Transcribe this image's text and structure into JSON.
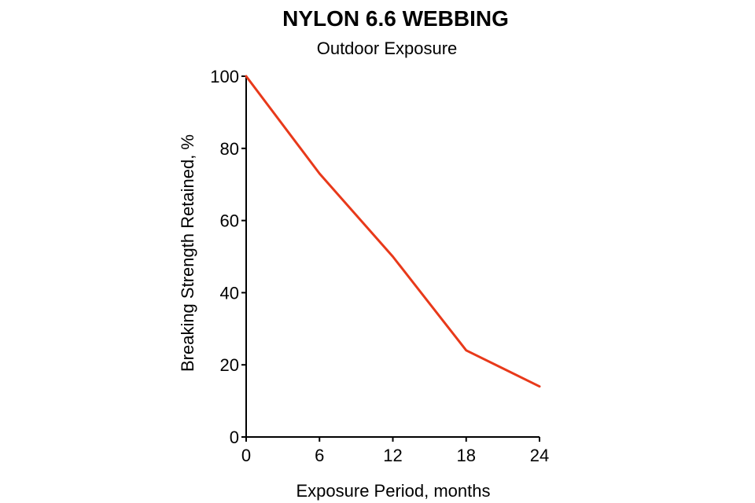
{
  "chart_data": {
    "type": "line",
    "title": "NYLON 6.6 WEBBING",
    "subtitle": "Outdoor Exposure",
    "xlabel": "Exposure Period, months",
    "ylabel": "Breaking Strength Retained, %",
    "xlim": [
      0,
      24
    ],
    "ylim": [
      0,
      100
    ],
    "x_ticks": [
      0,
      6,
      12,
      18,
      24
    ],
    "y_ticks": [
      0,
      20,
      40,
      60,
      80,
      100
    ],
    "grid": false,
    "series": [
      {
        "color": "#e8391a",
        "x": [
          0,
          6,
          12,
          18,
          24
        ],
        "y": [
          100,
          73,
          50,
          24,
          14
        ]
      }
    ]
  }
}
